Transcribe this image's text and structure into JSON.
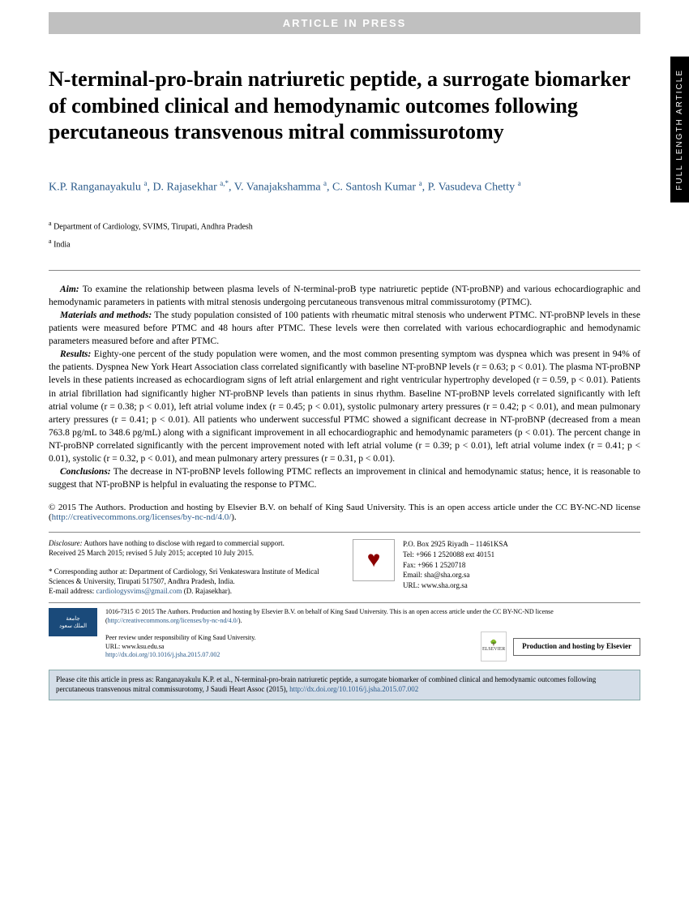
{
  "banner": "ARTICLE IN PRESS",
  "side_tab": "FULL LENGTH ARTICLE",
  "title": "N-terminal-pro-brain natriuretic peptide, a surrogate biomarker of combined clinical and hemodynamic outcomes following percutaneous transvenous mitral commissurotomy",
  "authors_html": "K.P. Ranganayakulu <sup>a</sup>, D. Rajasekhar <sup>a,*</sup>, V. Vanajakshamma <sup>a</sup>, C. Santosh Kumar <sup>a</sup>, P. Vasudeva Chetty <sup>a</sup>",
  "affiliations": [
    "Department of Cardiology, SVIMS, Tirupati, Andhra Pradesh",
    "India"
  ],
  "abstract": {
    "aim": "To examine the relationship between plasma levels of N-terminal-proB type natriuretic peptide (NT-proBNP) and various echocardiographic and hemodynamic parameters in patients with mitral stenosis undergoing percutaneous transvenous mitral commissurotomy (PTMC).",
    "methods": "The study population consisted of 100 patients with rheumatic mitral stenosis who underwent PTMC. NT-proBNP levels in these patients were measured before PTMC and 48 hours after PTMC. These levels were then correlated with various echocardiographic and hemodynamic parameters measured before and after PTMC.",
    "results": "Eighty-one percent of the study population were women, and the most common presenting symptom was dyspnea which was present in 94% of the patients. Dyspnea New York Heart Association class correlated significantly with baseline NT-proBNP levels (r = 0.63; p < 0.01). The plasma NT-proBNP levels in these patients increased as echocardiogram signs of left atrial enlargement and right ventricular hypertrophy developed (r = 0.59, p < 0.01). Patients in atrial fibrillation had significantly higher NT-proBNP levels than patients in sinus rhythm. Baseline NT-proBNP levels correlated significantly with left atrial volume (r = 0.38; p < 0.01), left atrial volume index (r = 0.45; p < 0.01), systolic pulmonary artery pressures (r = 0.42; p < 0.01), and mean pulmonary artery pressures (r = 0.41; p < 0.01). All patients who underwent successful PTMC showed a significant decrease in NT-proBNP (decreased from a mean 763.8 pg/mL to 348.6 pg/mL) along with a significant improvement in all echocardiographic and hemodynamic parameters (p < 0.01). The percent change in NT-proBNP correlated significantly with the percent improvement noted with left atrial volume (r = 0.39; p < 0.01), left atrial volume index (r = 0.41; p < 0.01), systolic (r = 0.32, p < 0.01), and mean pulmonary artery pressures (r = 0.31, p < 0.01).",
    "conclusions": "The decrease in NT-proBNP levels following PTMC reflects an improvement in clinical and hemodynamic status; hence, it is reasonable to suggest that NT-proBNP is helpful in evaluating the response to PTMC."
  },
  "copyright": "© 2015 The Authors. Production and hosting by Elsevier B.V. on behalf of King Saud University. This is an open access article under the CC BY-NC-ND license (",
  "cc_link": "http://creativecommons.org/licenses/by-nc-nd/4.0/",
  "disclosure": "Authors have nothing to disclose with regard to commercial support.",
  "dates": "Received 25 March 2015; revised 5 July 2015; accepted 10 July 2015.",
  "corresponding": "* Corresponding author at: Department of Cardiology, Sri Venkateswara Institute of Medical Sciences & University, Tirupati 517507, Andhra Pradesh, India.",
  "email_label": "E-mail address: ",
  "email": "cardiologysvims@gmail.com",
  "email_name": " (D. Rajasekhar).",
  "contact": {
    "po": "P.O. Box 2925 Riyadh – 11461KSA",
    "tel": "Tel: +966 1 2520088 ext 40151",
    "fax": "Fax: +966 1 2520718",
    "email": "Email: sha@sha.org.sa",
    "url": "URL: www.sha.org.sa"
  },
  "issn_line": "1016-7315 © 2015 The Authors. Production and hosting by Elsevier B.V. on behalf of King Saud University. This is an open access article under the CC BY-NC-ND license (",
  "peer": "Peer review under responsibility of King Saud University.",
  "ksu_url": "URL: www.ksu.edu.sa",
  "doi": "http://dx.doi.org/10.1016/j.jsha.2015.07.002",
  "hosting": "Production and hosting by Elsevier",
  "cite": "Please cite this article in press as: Ranganayakulu K.P. et al., N-terminal-pro-brain natriuretic peptide, a surrogate biomarker of combined clinical and hemodynamic outcomes following percutaneous transvenous mitral commissurotomy, J Saudi Heart Assoc (2015), ",
  "cite_doi": "http://dx.doi.org/10.1016/j.jsha.2015.07.002"
}
